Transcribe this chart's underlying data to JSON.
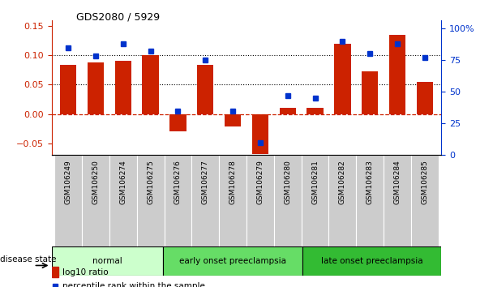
{
  "title": "GDS2080 / 5929",
  "samples": [
    "GSM106249",
    "GSM106250",
    "GSM106274",
    "GSM106275",
    "GSM106276",
    "GSM106277",
    "GSM106278",
    "GSM106279",
    "GSM106280",
    "GSM106281",
    "GSM106282",
    "GSM106283",
    "GSM106284",
    "GSM106285"
  ],
  "log10_ratio": [
    0.083,
    0.088,
    0.09,
    0.1,
    -0.03,
    0.083,
    -0.022,
    -0.068,
    0.01,
    0.01,
    0.12,
    0.072,
    0.135,
    0.055
  ],
  "percentile_rank": [
    85,
    78,
    88,
    82,
    35,
    75,
    35,
    10,
    47,
    45,
    90,
    80,
    88,
    77
  ],
  "bar_color": "#cc2200",
  "dot_color": "#0033cc",
  "group_normal_color": "#ccffcc",
  "group_early_color": "#66dd66",
  "group_late_color": "#33bb33",
  "groups": [
    {
      "label": "normal",
      "start": 0,
      "end": 4
    },
    {
      "label": "early onset preeclampsia",
      "start": 4,
      "end": 9
    },
    {
      "label": "late onset preeclampsia",
      "start": 9,
      "end": 14
    }
  ],
  "group_colors": [
    "#ccffcc",
    "#66dd66",
    "#33bb33"
  ],
  "ylim_left": [
    -0.07,
    0.16
  ],
  "ylim_right": [
    0,
    106.67
  ],
  "yticks_left": [
    -0.05,
    0.0,
    0.05,
    0.1,
    0.15
  ],
  "yticks_right": [
    0,
    25,
    50,
    75,
    100
  ],
  "hlines": [
    0.05,
    0.1
  ],
  "zero_line": 0.0,
  "tick_bg_color": "#cccccc",
  "legend": [
    "log10 ratio",
    "percentile rank within the sample"
  ],
  "bg_color": "white"
}
